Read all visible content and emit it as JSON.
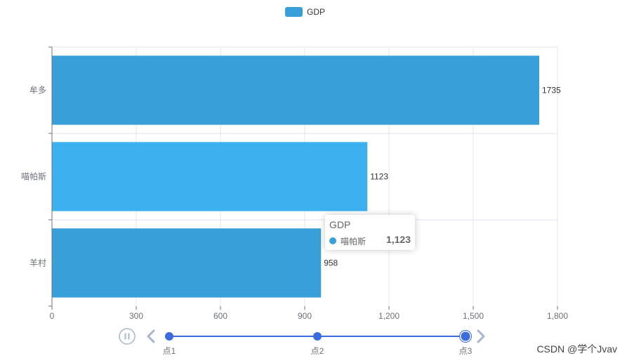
{
  "chart_data": {
    "type": "bar",
    "orientation": "horizontal",
    "categories": [
      "牟多",
      "喵帕斯",
      "羊村"
    ],
    "series": [
      {
        "name": "GDP",
        "values": [
          1735,
          1123,
          958
        ]
      }
    ],
    "xlim": [
      0,
      1800
    ],
    "xticks": [
      "0",
      "300",
      "600",
      "900",
      "1,200",
      "1,500",
      "1,800"
    ],
    "xtick_values": [
      0,
      300,
      600,
      900,
      1200,
      1500,
      1800
    ],
    "grid": true,
    "legend_position": "top-center",
    "data_labels": [
      "1735",
      "1123",
      "958"
    ],
    "highlighted_index": 1
  },
  "colors": {
    "bar": "#389fd9",
    "bar_highlight": "#3db1f0",
    "timeline": "#3a6ce0",
    "control": "#a6b6d0"
  },
  "tooltip": {
    "title": "GDP",
    "name": "喵帕斯",
    "value": "1,123"
  },
  "timeline": {
    "points": [
      "点1",
      "点2",
      "点3"
    ],
    "current_index": 2,
    "play_icon": "pause-icon",
    "prev_icon": "chevron-left-icon",
    "next_icon": "chevron-right-icon"
  },
  "watermark": "CSDN @学个Jvav"
}
